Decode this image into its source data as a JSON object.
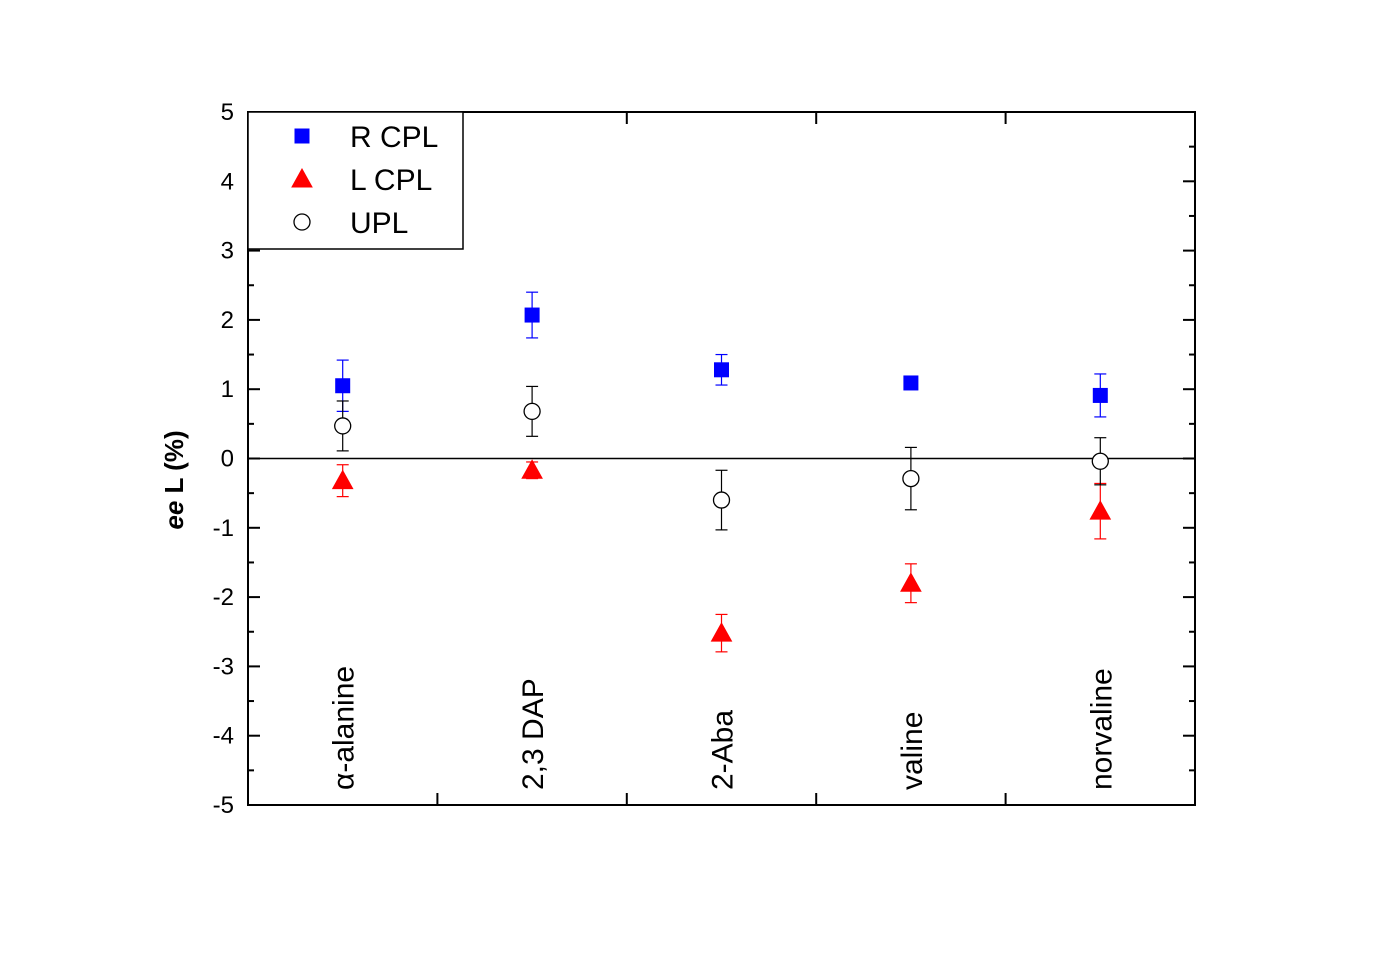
{
  "chart_data": {
    "type": "scatter",
    "title": "",
    "xlabel": "",
    "ylabel_italic": "ee",
    "ylabel_rest": " L (%)",
    "ylim": [
      -5,
      5
    ],
    "yticks": [
      -5,
      -4,
      -3,
      -2,
      -1,
      0,
      1,
      2,
      3,
      4,
      5
    ],
    "categories": [
      "α-alanine",
      "2,3 DAP",
      "2-Aba",
      "valine",
      "norvaline"
    ],
    "grid": false,
    "zero_line": true,
    "legend_position": "top-left",
    "series": [
      {
        "name": "R CPL",
        "marker": "square",
        "color": "#0000ff",
        "filled": true,
        "values": [
          1.05,
          2.07,
          1.28,
          1.09,
          0.91
        ],
        "err_up": [
          0.37,
          0.33,
          0.22,
          0.0,
          0.31
        ],
        "err_down": [
          0.37,
          0.33,
          0.22,
          0.0,
          0.31
        ]
      },
      {
        "name": "L CPL",
        "marker": "triangle",
        "color": "#ff0000",
        "filled": true,
        "values": [
          -0.32,
          -0.17,
          -2.52,
          -1.8,
          -0.76
        ],
        "err_up": [
          0.23,
          0.12,
          0.27,
          0.28,
          0.4
        ],
        "err_down": [
          0.23,
          0.12,
          0.27,
          0.28,
          0.4
        ]
      },
      {
        "name": "UPL",
        "marker": "circle",
        "color": "#000000",
        "filled": false,
        "values": [
          0.47,
          0.68,
          -0.6,
          -0.29,
          -0.04
        ],
        "err_up": [
          0.36,
          0.36,
          0.43,
          0.45,
          0.34
        ],
        "err_down": [
          0.36,
          0.36,
          0.43,
          0.45,
          0.34
        ]
      }
    ]
  }
}
